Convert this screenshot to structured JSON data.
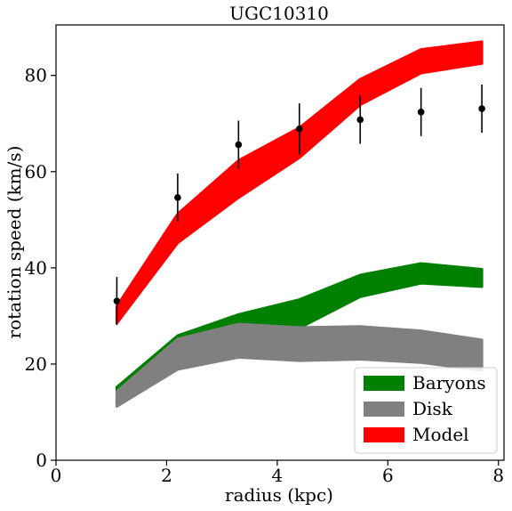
{
  "chart_data": {
    "type": "area",
    "title": "UGC10310",
    "xlabel": "radius (kpc)",
    "ylabel": "rotation speed (km/s)",
    "xlim": [
      0,
      8.1
    ],
    "ylim": [
      0,
      90.5
    ],
    "x_ticks": [
      0,
      2,
      4,
      6,
      8
    ],
    "y_ticks": [
      0,
      20,
      40,
      60,
      80
    ],
    "grid": false,
    "legend_position": "lower-right",
    "x": [
      1.1,
      2.2,
      3.3,
      4.4,
      5.5,
      6.6,
      7.7
    ],
    "series": [
      {
        "name": "Baryons",
        "color": "#008000",
        "lower": [
          11.8,
          20.2,
          24.3,
          27.5,
          34.0,
          36.8,
          36.1
        ],
        "upper": [
          15.2,
          25.9,
          30.3,
          33.4,
          38.5,
          40.9,
          39.7
        ]
      },
      {
        "name": "Disk",
        "color": "#808080",
        "lower": [
          11.2,
          18.9,
          21.4,
          20.7,
          21.0,
          20.3,
          18.7
        ],
        "upper": [
          14.3,
          25.2,
          28.3,
          27.6,
          27.8,
          26.9,
          25.0
        ]
      },
      {
        "name": "Model",
        "color": "#ff0000",
        "lower": [
          28.5,
          45.2,
          54.6,
          62.9,
          73.9,
          80.5,
          82.5
        ],
        "upper": [
          32.0,
          51.2,
          62.3,
          69.1,
          79.2,
          85.4,
          87.0
        ]
      }
    ],
    "observations": {
      "color": "#000000",
      "x": [
        1.1,
        2.2,
        3.3,
        4.4,
        5.5,
        6.6,
        7.7
      ],
      "y": [
        33.1,
        54.6,
        65.6,
        68.9,
        70.8,
        72.4,
        73.1
      ],
      "err": [
        5.0,
        5.0,
        5.0,
        5.3,
        5.0,
        5.0,
        5.0
      ]
    }
  }
}
